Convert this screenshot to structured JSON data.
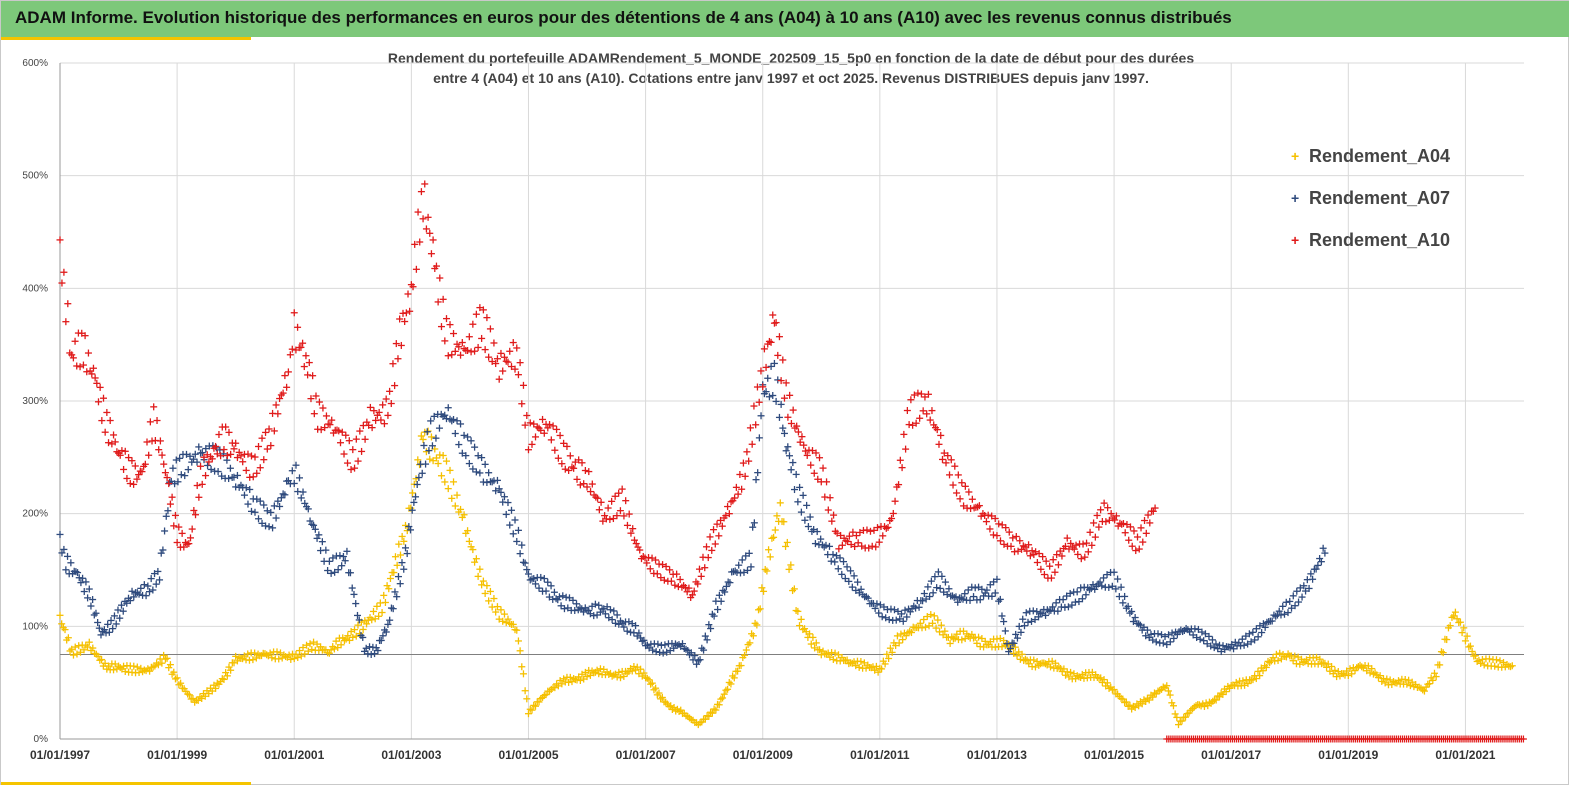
{
  "header": {
    "title": "ADAM Informe. Evolution historique des performances en euros pour des détentions de 4 ans (A04) à 10 ans (A10) avec les revenus connus distribués"
  },
  "colors": {
    "header_bg": "#7dc87a",
    "accent": "#f5c400",
    "a04": "#f5c000",
    "a07": "#2e4a7d",
    "a10": "#e01b1b",
    "grid": "#d9d9d9"
  },
  "chart_data": {
    "type": "scatter",
    "title_line1": "Rendement du portefeuille ADAMRendement_5_MONDE_202509_15_5p0  en fonction de la date de début pour des durées",
    "title_line2": "entre 4 (A04) et 10 ans (A10). Cotations  entre janv 1997 et oct 2025. Revenus DISTRIBUES depuis janv 1997.",
    "xlabel": "",
    "ylabel": "",
    "xlim": [
      1997.0,
      2022.0
    ],
    "ylim": [
      0,
      600
    ],
    "y_ticks": [
      0,
      100,
      200,
      300,
      400,
      500,
      600
    ],
    "y_tick_labels": [
      "0%",
      "100%",
      "200%",
      "300%",
      "400%",
      "500%",
      "600%"
    ],
    "x_ticks": [
      1997,
      1999,
      2001,
      2003,
      2005,
      2007,
      2009,
      2011,
      2013,
      2015,
      2017,
      2019,
      2021
    ],
    "x_tick_labels": [
      "01/01/1997",
      "01/01/1999",
      "01/01/2001",
      "01/01/2003",
      "01/01/2005",
      "01/01/2007",
      "01/01/2009",
      "01/01/2011",
      "01/01/2013",
      "01/01/2015",
      "01/01/2017",
      "01/01/2019",
      "01/01/2021"
    ],
    "reference_line": 75,
    "grid": true,
    "legend_position": "top-right",
    "series": [
      {
        "name": "Rendement_A04",
        "key": "a04",
        "x": [
          1997.0,
          1997.2,
          1997.5,
          1997.8,
          1998.2,
          1998.5,
          1998.8,
          1999.0,
          1999.3,
          1999.6,
          2000.0,
          2000.5,
          2001.0,
          2001.3,
          2001.6,
          2002.0,
          2002.5,
          2002.9,
          2003.2,
          2003.6,
          2003.9,
          2004.2,
          2004.5,
          2004.8,
          2005.0,
          2005.3,
          2005.6,
          2006.0,
          2006.4,
          2006.8,
          2007.2,
          2007.6,
          2007.9,
          2008.2,
          2008.6,
          2008.9,
          2009.1,
          2009.3,
          2009.6,
          2010.0,
          2010.5,
          2011.0,
          2011.3,
          2011.6,
          2011.9,
          2012.2,
          2012.6,
          2013.0,
          2013.4,
          2013.8,
          2014.2,
          2014.6,
          2015.0,
          2015.3,
          2015.6,
          2015.9,
          2016.1,
          2016.4,
          2016.8,
          2017.2,
          2017.6,
          2018.0,
          2018.4,
          2018.8,
          2019.2,
          2019.6,
          2020.0,
          2020.3,
          2020.5,
          2020.8,
          2021.2,
          2021.5,
          2021.8
        ],
        "values": [
          105,
          75,
          80,
          60,
          65,
          62,
          72,
          55,
          35,
          45,
          70,
          72,
          70,
          80,
          75,
          95,
          120,
          180,
          265,
          240,
          195,
          140,
          110,
          95,
          25,
          40,
          50,
          60,
          55,
          65,
          40,
          25,
          15,
          30,
          60,
          100,
          160,
          210,
          110,
          75,
          65,
          60,
          85,
          95,
          105,
          88,
          90,
          85,
          75,
          65,
          60,
          55,
          45,
          28,
          35,
          45,
          15,
          30,
          38,
          50,
          65,
          75,
          68,
          60,
          62,
          55,
          48,
          42,
          55,
          110,
          72,
          70,
          65
        ]
      },
      {
        "name": "Rendement_A07",
        "key": "a07",
        "x": [
          1997.0,
          1997.1,
          1997.3,
          1997.5,
          1997.7,
          1997.9,
          1998.2,
          1998.5,
          1998.7,
          1998.9,
          1999.1,
          1999.4,
          1999.7,
          2000.0,
          2000.3,
          2000.6,
          2000.9,
          2001.0,
          2001.3,
          2001.6,
          2001.9,
          2002.2,
          2002.4,
          2002.6,
          2002.9,
          2003.1,
          2003.3,
          2003.6,
          2003.9,
          2004.2,
          2004.5,
          2004.8,
          2005.0,
          2005.3,
          2005.7,
          2006.0,
          2006.4,
          2006.8,
          2007.0,
          2007.3,
          2007.6,
          2007.9,
          2008.2,
          2008.5,
          2008.8,
          2009.0,
          2009.2,
          2009.4,
          2009.6,
          2009.9,
          2010.2,
          2010.5,
          2010.8,
          2011.1,
          2011.4,
          2011.7,
          2012.0,
          2012.3,
          2012.6,
          2013.0,
          2013.2,
          2013.5,
          2013.8,
          2014.1,
          2014.4,
          2014.7,
          2015.0,
          2015.3,
          2015.6,
          2015.9,
          2016.2,
          2016.5,
          2016.8,
          2017.1,
          2017.4,
          2017.7,
          2018.0,
          2018.3,
          2018.6
        ],
        "values": [
          175,
          160,
          145,
          125,
          95,
          105,
          130,
          135,
          150,
          230,
          240,
          250,
          245,
          230,
          210,
          195,
          230,
          235,
          190,
          150,
          160,
          80,
          75,
          100,
          160,
          230,
          270,
          295,
          265,
          240,
          220,
          180,
          145,
          135,
          120,
          115,
          110,
          100,
          80,
          78,
          85,
          70,
          120,
          150,
          160,
          310,
          320,
          260,
          220,
          180,
          160,
          140,
          120,
          110,
          110,
          125,
          145,
          125,
          130,
          135,
          75,
          105,
          110,
          120,
          130,
          140,
          145,
          110,
          90,
          85,
          95,
          90,
          80,
          85,
          95,
          110,
          120,
          135,
          165
        ]
      },
      {
        "name": "Rendement_A10",
        "key": "a10",
        "x": [
          1997.0,
          1997.1,
          1997.2,
          1997.4,
          1997.6,
          1997.8,
          1998.0,
          1998.2,
          1998.4,
          1998.6,
          1998.8,
          1999.0,
          1999.2,
          1999.4,
          1999.6,
          1999.8,
          2000.0,
          2000.3,
          2000.6,
          2000.9,
          2001.0,
          2001.2,
          2001.4,
          2001.7,
          2002.0,
          2002.3,
          2002.6,
          2002.8,
          2003.0,
          2003.2,
          2003.4,
          2003.6,
          2003.9,
          2004.2,
          2004.5,
          2004.8,
          2005.0,
          2005.3,
          2005.6,
          2006.0,
          2006.3,
          2006.6,
          2006.9,
          2007.2,
          2007.5,
          2007.8,
          2008.1,
          2008.4,
          2008.7,
          2009.0,
          2009.2,
          2009.4,
          2009.7,
          2010.0,
          2010.3,
          2010.6,
          2010.9,
          2011.2,
          2011.5,
          2011.8,
          2012.1,
          2012.4,
          2012.7,
          2013.0,
          2013.3,
          2013.6,
          2013.9,
          2014.2,
          2014.5,
          2014.8,
          2015.1,
          2015.4,
          2015.7
        ],
        "values": [
          430,
          390,
          340,
          350,
          320,
          275,
          255,
          240,
          235,
          280,
          240,
          185,
          170,
          230,
          255,
          270,
          255,
          240,
          275,
          330,
          360,
          340,
          290,
          280,
          250,
          285,
          290,
          360,
          400,
          480,
          420,
          360,
          345,
          370,
          330,
          340,
          270,
          280,
          250,
          235,
          200,
          215,
          165,
          150,
          140,
          125,
          170,
          200,
          240,
          330,
          370,
          300,
          255,
          235,
          175,
          180,
          180,
          195,
          290,
          300,
          250,
          215,
          200,
          185,
          175,
          170,
          150,
          175,
          165,
          200,
          190,
          170,
          205
        ]
      }
    ],
    "flat_series": {
      "name": "Rendement_A10",
      "x_start": 2015.9,
      "x_end": 2022.0,
      "value": 0
    }
  }
}
